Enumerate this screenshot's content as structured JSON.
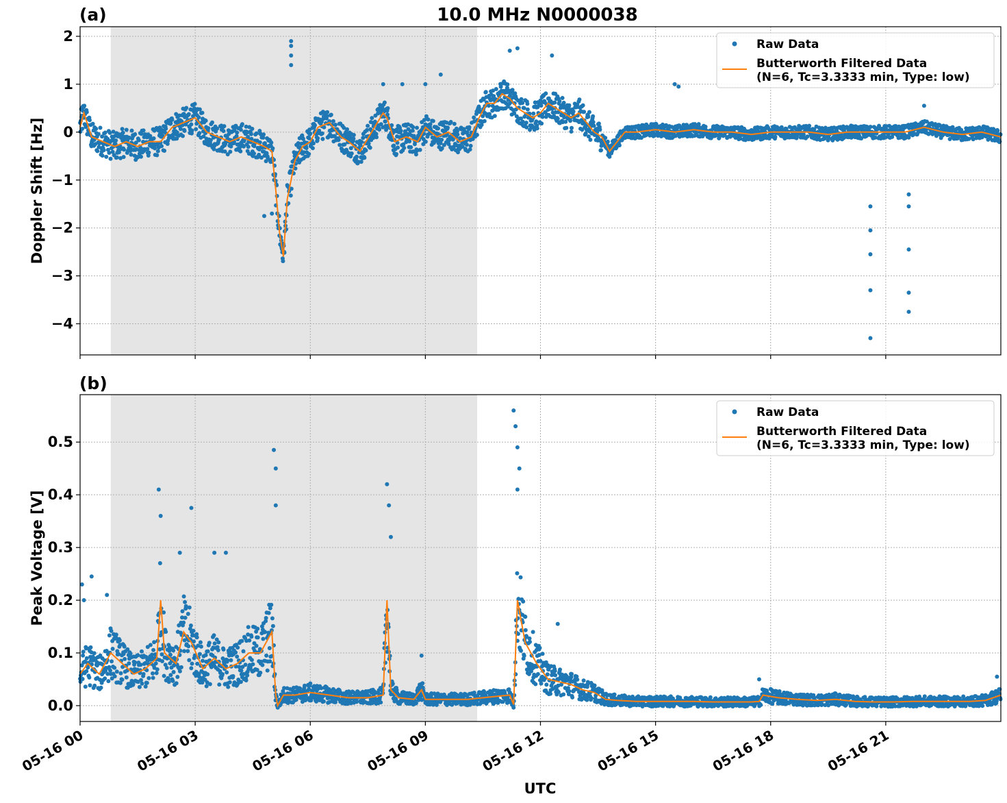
{
  "figure": {
    "title": "10.0 MHz N0000038",
    "xlabel": "UTC",
    "colors": {
      "raw": "#1f77b4",
      "filtered": "#ff7f0e",
      "shade": "#e5e5e5",
      "grid": "#b0b0b0"
    }
  },
  "chart_data": [
    {
      "panel_label": "(a)",
      "type": "scatter",
      "ylabel": "Doppler Shift [Hz]",
      "x_unit": "UTC hour on 05-16",
      "xlim": [
        0,
        24
      ],
      "ylim": [
        -4.65,
        2.2
      ],
      "yticks": [
        2,
        1,
        0,
        -1,
        -2,
        -3,
        -4
      ],
      "ytick_labels": [
        "2",
        "1",
        "0",
        "−1",
        "−2",
        "−3",
        "−4"
      ],
      "shaded_x_range": [
        0.8,
        10.35
      ],
      "grid": true,
      "legend_position": "top-right",
      "series": [
        {
          "name": "Raw Data",
          "kind": "points",
          "color": "#1f77b4",
          "band_halfwidth": 0.3,
          "x": [
            0,
            0.1,
            0.3,
            0.6,
            0.9,
            1.2,
            1.5,
            1.8,
            2.1,
            2.4,
            2.7,
            3.0,
            3.3,
            3.6,
            3.9,
            4.2,
            4.5,
            4.8,
            5.0,
            5.1,
            5.2,
            5.3,
            5.4,
            5.5,
            5.6,
            5.8,
            6.0,
            6.2,
            6.5,
            6.8,
            7.0,
            7.3,
            7.6,
            7.9,
            8.0,
            8.2,
            8.5,
            8.8,
            9.0,
            9.3,
            9.6,
            9.9,
            10.2,
            10.4,
            10.6,
            10.8,
            11.0,
            11.2,
            11.4,
            11.6,
            11.8,
            12.0,
            12.2,
            12.4,
            12.6,
            12.8,
            13.0,
            13.2,
            13.4,
            13.6,
            13.8,
            14.0,
            14.2,
            14.5,
            15.0,
            15.5,
            16.0,
            16.5,
            17.0,
            17.5,
            18.0,
            18.5,
            19.0,
            19.5,
            20.0,
            20.5,
            21.0,
            21.5,
            22.0,
            22.5,
            23.0,
            23.5,
            24.0
          ],
          "y": [
            0.1,
            0.4,
            -0.1,
            -0.2,
            -0.3,
            -0.2,
            -0.3,
            -0.2,
            -0.2,
            0.1,
            0.2,
            0.3,
            0.0,
            -0.1,
            -0.2,
            -0.1,
            -0.2,
            -0.3,
            -0.4,
            -1.2,
            -2.1,
            -2.6,
            -1.4,
            -1.0,
            -0.6,
            -0.3,
            -0.2,
            0.1,
            0.2,
            -0.1,
            -0.2,
            -0.4,
            0.0,
            0.4,
            0.3,
            -0.2,
            -0.1,
            -0.2,
            0.1,
            -0.1,
            0.0,
            -0.2,
            -0.1,
            0.3,
            0.6,
            0.6,
            0.8,
            0.7,
            0.5,
            0.4,
            0.3,
            0.4,
            0.6,
            0.5,
            0.4,
            0.3,
            0.4,
            0.2,
            0.0,
            -0.1,
            -0.4,
            -0.2,
            0.0,
            0.0,
            0.05,
            0.0,
            0.05,
            0.0,
            0.0,
            -0.05,
            0.0,
            0.0,
            0.0,
            -0.05,
            0.0,
            0.0,
            0.0,
            0.0,
            0.1,
            0.0,
            -0.05,
            0.0,
            -0.1
          ]
        },
        {
          "name": "Butterworth Filtered Data\n(N=6, Tc=3.3333 min, Type: low)",
          "kind": "line",
          "color": "#ff7f0e",
          "x": [
            0,
            0.1,
            0.3,
            0.6,
            0.9,
            1.2,
            1.5,
            1.8,
            2.1,
            2.4,
            2.7,
            3.0,
            3.3,
            3.6,
            3.9,
            4.2,
            4.5,
            4.8,
            5.0,
            5.1,
            5.2,
            5.3,
            5.4,
            5.5,
            5.6,
            5.8,
            6.0,
            6.2,
            6.5,
            6.8,
            7.0,
            7.3,
            7.6,
            7.9,
            8.0,
            8.2,
            8.5,
            8.8,
            9.0,
            9.3,
            9.6,
            9.9,
            10.2,
            10.4,
            10.6,
            10.8,
            11.0,
            11.2,
            11.4,
            11.6,
            11.8,
            12.0,
            12.2,
            12.4,
            12.6,
            12.8,
            13.0,
            13.2,
            13.4,
            13.6,
            13.8,
            14.0,
            14.2,
            14.5,
            15.0,
            15.5,
            16.0,
            16.5,
            17.0,
            17.5,
            18.0,
            18.5,
            19.0,
            19.5,
            20.0,
            20.5,
            21.0,
            21.5,
            22.0,
            22.5,
            23.0,
            23.5,
            24.0
          ],
          "y": [
            0.1,
            0.4,
            -0.1,
            -0.2,
            -0.3,
            -0.2,
            -0.3,
            -0.2,
            -0.2,
            0.1,
            0.2,
            0.3,
            0.0,
            -0.1,
            -0.2,
            -0.1,
            -0.2,
            -0.3,
            -0.4,
            -1.2,
            -2.1,
            -2.6,
            -1.4,
            -1.0,
            -0.6,
            -0.3,
            -0.2,
            0.1,
            0.2,
            -0.1,
            -0.2,
            -0.4,
            0.0,
            0.4,
            0.3,
            -0.2,
            -0.1,
            -0.2,
            0.1,
            -0.1,
            0.0,
            -0.2,
            -0.1,
            0.3,
            0.6,
            0.6,
            0.8,
            0.7,
            0.5,
            0.4,
            0.3,
            0.4,
            0.6,
            0.5,
            0.4,
            0.3,
            0.4,
            0.2,
            0.0,
            -0.1,
            -0.4,
            -0.2,
            0.0,
            0.0,
            0.05,
            0.0,
            0.05,
            0.0,
            0.0,
            -0.05,
            0.0,
            0.0,
            0.0,
            -0.05,
            0.0,
            0.0,
            0.0,
            0.0,
            0.1,
            0.0,
            -0.05,
            0.0,
            -0.1
          ]
        }
      ],
      "outliers": {
        "x": [
          5.5,
          5.5,
          5.5,
          5.5,
          7.9,
          8.4,
          9.0,
          9.4,
          11.4,
          11.2,
          12.3,
          15.5,
          15.6,
          20.6,
          20.6,
          20.6,
          20.6,
          20.6,
          21.6,
          21.6,
          21.6,
          21.6,
          21.6,
          5.0,
          4.8,
          22.0
        ],
        "y": [
          1.9,
          1.8,
          1.6,
          1.4,
          1.0,
          1.0,
          1.0,
          1.2,
          1.75,
          1.7,
          1.6,
          1.0,
          0.95,
          -1.55,
          -2.05,
          -2.55,
          -3.3,
          -4.3,
          -1.3,
          -1.55,
          -2.45,
          -3.35,
          -3.75,
          -1.7,
          -1.75,
          0.55
        ]
      }
    },
    {
      "panel_label": "(b)",
      "type": "scatter",
      "ylabel": "Peak Voltage [V]",
      "x_unit": "UTC hour on 05-16",
      "xlim": [
        0,
        24
      ],
      "ylim": [
        -0.03,
        0.59
      ],
      "yticks": [
        0.0,
        0.1,
        0.2,
        0.3,
        0.4,
        0.5
      ],
      "ytick_labels": [
        "0.0",
        "0.1",
        "0.2",
        "0.3",
        "0.4",
        "0.5"
      ],
      "shaded_x_range": [
        0.8,
        10.35
      ],
      "grid": true,
      "legend_position": "top-right",
      "series": [
        {
          "name": "Raw Data",
          "kind": "points",
          "color": "#1f77b4",
          "band_halfwidth": 0.03,
          "x": [
            0,
            0.2,
            0.5,
            0.8,
            1.1,
            1.4,
            1.7,
            2.0,
            2.1,
            2.2,
            2.5,
            2.7,
            2.9,
            3.2,
            3.5,
            3.8,
            4.1,
            4.4,
            4.7,
            5.0,
            5.1,
            5.15,
            5.3,
            5.6,
            6.0,
            6.5,
            7.0,
            7.5,
            7.9,
            8.0,
            8.1,
            8.3,
            8.7,
            8.9,
            9.0,
            9.3,
            9.7,
            10.1,
            10.5,
            10.9,
            11.2,
            11.3,
            11.4,
            11.6,
            11.9,
            12.2,
            12.5,
            12.8,
            13.1,
            13.4,
            13.7,
            14.0,
            14.5,
            15.0,
            15.5,
            16.0,
            16.5,
            17.0,
            17.5,
            17.7,
            17.8,
            18.2,
            18.7,
            19.2,
            19.7,
            20.2,
            20.7,
            21.2,
            21.7,
            22.2,
            22.7,
            23.2,
            23.6,
            24.0
          ],
          "y": [
            0.06,
            0.08,
            0.06,
            0.1,
            0.08,
            0.06,
            0.07,
            0.09,
            0.2,
            0.1,
            0.08,
            0.14,
            0.12,
            0.07,
            0.09,
            0.07,
            0.08,
            0.1,
            0.1,
            0.14,
            0.02,
            0.0,
            0.02,
            0.02,
            0.025,
            0.02,
            0.015,
            0.015,
            0.02,
            0.2,
            0.03,
            0.015,
            0.012,
            0.03,
            0.012,
            0.012,
            0.012,
            0.012,
            0.015,
            0.018,
            0.02,
            0.002,
            0.2,
            0.12,
            0.08,
            0.05,
            0.045,
            0.04,
            0.03,
            0.025,
            0.012,
            0.01,
            0.008,
            0.008,
            0.008,
            0.008,
            0.007,
            0.007,
            0.007,
            0.008,
            0.02,
            0.015,
            0.012,
            0.01,
            0.012,
            0.008,
            0.007,
            0.007,
            0.008,
            0.008,
            0.008,
            0.008,
            0.01,
            0.02
          ]
        },
        {
          "name": "Butterworth Filtered Data\n(N=6, Tc=3.3333 min, Type: low)",
          "kind": "line",
          "color": "#ff7f0e",
          "x": [
            0,
            0.2,
            0.5,
            0.8,
            1.1,
            1.4,
            1.7,
            2.0,
            2.1,
            2.2,
            2.5,
            2.7,
            2.9,
            3.2,
            3.5,
            3.8,
            4.1,
            4.4,
            4.7,
            5.0,
            5.1,
            5.15,
            5.3,
            5.6,
            6.0,
            6.5,
            7.0,
            7.5,
            7.9,
            8.0,
            8.1,
            8.3,
            8.7,
            8.9,
            9.0,
            9.3,
            9.7,
            10.1,
            10.5,
            10.9,
            11.2,
            11.3,
            11.4,
            11.6,
            11.9,
            12.2,
            12.5,
            12.8,
            13.1,
            13.4,
            13.7,
            14.0,
            14.5,
            15.0,
            15.5,
            16.0,
            16.5,
            17.0,
            17.5,
            17.7,
            17.8,
            18.2,
            18.7,
            19.2,
            19.7,
            20.2,
            20.7,
            21.2,
            21.7,
            22.2,
            22.7,
            23.2,
            23.6,
            24.0
          ],
          "y": [
            0.06,
            0.08,
            0.06,
            0.1,
            0.08,
            0.06,
            0.07,
            0.09,
            0.2,
            0.1,
            0.08,
            0.14,
            0.12,
            0.07,
            0.09,
            0.07,
            0.08,
            0.1,
            0.1,
            0.14,
            0.02,
            0.0,
            0.02,
            0.02,
            0.025,
            0.02,
            0.015,
            0.015,
            0.02,
            0.2,
            0.03,
            0.015,
            0.012,
            0.03,
            0.012,
            0.012,
            0.012,
            0.012,
            0.015,
            0.018,
            0.02,
            0.002,
            0.2,
            0.12,
            0.08,
            0.05,
            0.045,
            0.04,
            0.03,
            0.025,
            0.012,
            0.01,
            0.008,
            0.008,
            0.008,
            0.008,
            0.007,
            0.007,
            0.007,
            0.008,
            0.02,
            0.015,
            0.012,
            0.01,
            0.012,
            0.008,
            0.007,
            0.007,
            0.008,
            0.008,
            0.008,
            0.008,
            0.01,
            0.02
          ]
        }
      ],
      "outliers": {
        "x": [
          0.05,
          0.1,
          0.3,
          0.7,
          2.05,
          2.1,
          2.6,
          2.9,
          3.5,
          3.8,
          5.05,
          5.1,
          5.1,
          8.0,
          8.05,
          8.1,
          8.9,
          11.3,
          11.35,
          11.4,
          11.45,
          11.4,
          12.45,
          17.7,
          23.9
        ],
        "y": [
          0.23,
          0.2,
          0.245,
          0.21,
          0.41,
          0.36,
          0.29,
          0.375,
          0.29,
          0.29,
          0.485,
          0.45,
          0.38,
          0.42,
          0.38,
          0.32,
          0.095,
          0.56,
          0.53,
          0.49,
          0.45,
          0.41,
          0.155,
          0.05,
          0.055
        ]
      }
    }
  ],
  "x_axis": {
    "tick_hours": [
      0,
      3,
      6,
      9,
      12,
      15,
      18,
      21
    ],
    "tick_labels": [
      "05-16 00",
      "05-16 03",
      "05-16 06",
      "05-16 09",
      "05-16 12",
      "05-16 15",
      "05-16 18",
      "05-16 21"
    ]
  }
}
